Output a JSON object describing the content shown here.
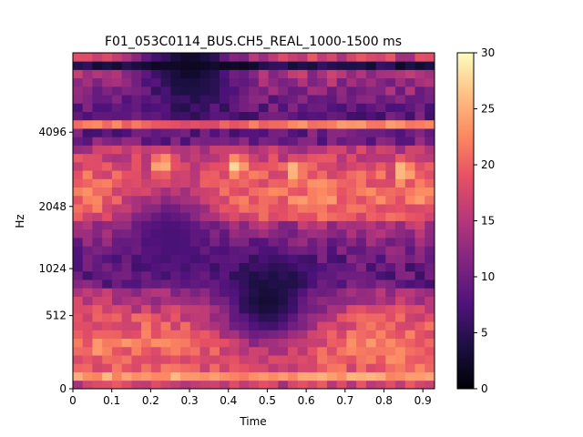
{
  "chart_data": {
    "type": "heatmap",
    "title": "F01_053C0114_BUS.CH5_REAL_1000-1500 ms",
    "xlabel": "Time",
    "ylabel": "Hz",
    "xlim": [
      0,
      0.93
    ],
    "x_ticks": [
      {
        "value": 0,
        "label": "0"
      },
      {
        "value": 0.1,
        "label": "0.1"
      },
      {
        "value": 0.2,
        "label": "0.2"
      },
      {
        "value": 0.3,
        "label": "0.3"
      },
      {
        "value": 0.4,
        "label": "0.4"
      },
      {
        "value": 0.5,
        "label": "0.5"
      },
      {
        "value": 0.6,
        "label": "0.6"
      },
      {
        "value": 0.7,
        "label": "0.7"
      },
      {
        "value": 0.8,
        "label": "0.8"
      },
      {
        "value": 0.9,
        "label": "0.9"
      }
    ],
    "y_scale": "mel",
    "y_ticks": [
      {
        "value": 0,
        "label": "0"
      },
      {
        "value": 512,
        "label": "512"
      },
      {
        "value": 1024,
        "label": "1024"
      },
      {
        "value": 2048,
        "label": "2048"
      },
      {
        "value": 4096,
        "label": "4096"
      }
    ],
    "colorbar": {
      "range": [
        0,
        30
      ],
      "ticks": [
        0,
        5,
        10,
        15,
        20,
        25,
        30
      ],
      "colormap": "magma"
    },
    "grid": false,
    "dims": {
      "time_frames": 37,
      "freq_bands": 40
    },
    "band_features": [
      {
        "band": 1,
        "intensity": 24
      },
      {
        "band": 31,
        "intensity": 22
      },
      {
        "band": 38,
        "intensity": 4
      }
    ],
    "hot_spots": [
      {
        "time": 0.23,
        "band": 26,
        "intensity": 29
      },
      {
        "time": 0.42,
        "band": 26,
        "intensity": 28
      },
      {
        "time": 0.57,
        "band": 25.5,
        "intensity": 26
      },
      {
        "time": 0.85,
        "band": 25.5,
        "intensity": 27
      }
    ],
    "dark_regions": [
      {
        "time": 0.5,
        "band": 10,
        "intensity": 3
      },
      {
        "time": 0.3,
        "band": 38,
        "intensity": 2
      },
      {
        "time": 0.25,
        "band": 18,
        "intensity": 7
      }
    ]
  }
}
